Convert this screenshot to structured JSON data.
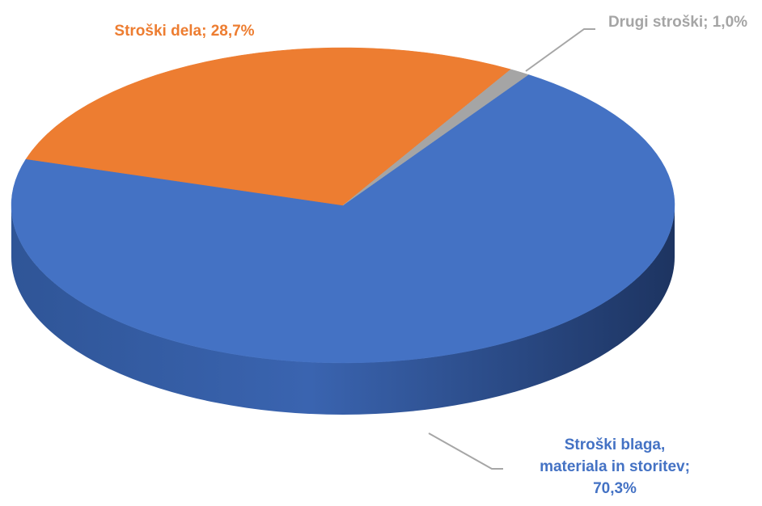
{
  "chart_data": {
    "type": "pie",
    "style": "3d",
    "slices": [
      {
        "label_lines": [
          "Stroški blaga,",
          "materiala in storitev;",
          "70,3%"
        ],
        "value": 70.3,
        "color": "#4472C4"
      },
      {
        "label_lines": [
          "Stroški dela; 28,7%"
        ],
        "value": 28.7,
        "color": "#ED7D31"
      },
      {
        "label_lines": [
          "Drugi stroški; 1,0%"
        ],
        "value": 1.0,
        "color": "#A5A5A5"
      }
    ]
  }
}
